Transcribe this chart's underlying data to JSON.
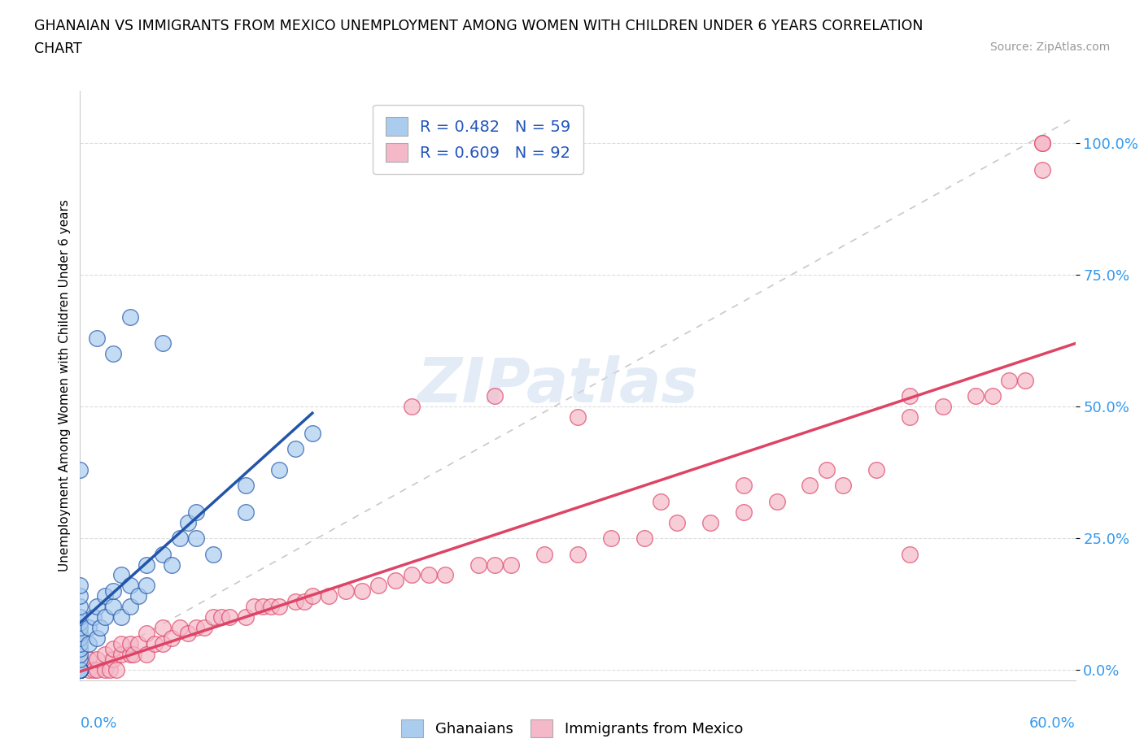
{
  "title_line1": "GHANAIAN VS IMMIGRANTS FROM MEXICO UNEMPLOYMENT AMONG WOMEN WITH CHILDREN UNDER 6 YEARS CORRELATION",
  "title_line2": "CHART",
  "source": "Source: ZipAtlas.com",
  "xlabel_end": "60.0%",
  "xlabel_start": "0.0%",
  "ylabel": "Unemployment Among Women with Children Under 6 years",
  "legend_r1": "R = 0.482   N = 59",
  "legend_r2": "R = 0.609   N = 92",
  "watermark": "ZIPatlas",
  "color_blue": "#aaccee",
  "color_pink": "#f5b8c8",
  "line_blue": "#2255aa",
  "line_pink": "#dd4466",
  "yticks": [
    "0.0%",
    "25.0%",
    "50.0%",
    "75.0%",
    "100.0%"
  ],
  "ytick_vals": [
    0.0,
    0.25,
    0.5,
    0.75,
    1.0
  ],
  "xlim": [
    0.0,
    0.6
  ],
  "ylim": [
    -0.02,
    1.1
  ],
  "ghanaian_x": [
    0.0,
    0.0,
    0.0,
    0.0,
    0.0,
    0.0,
    0.0,
    0.0,
    0.0,
    0.0,
    0.0,
    0.0,
    0.0,
    0.0,
    0.0,
    0.0,
    0.0,
    0.0,
    0.0,
    0.0,
    0.0,
    0.0,
    0.0,
    0.0,
    0.0,
    0.005,
    0.005,
    0.008,
    0.01,
    0.01,
    0.012,
    0.015,
    0.015,
    0.02,
    0.02,
    0.025,
    0.025,
    0.03,
    0.03,
    0.035,
    0.04,
    0.04,
    0.05,
    0.055,
    0.06,
    0.065,
    0.07,
    0.07,
    0.08,
    0.1,
    0.1,
    0.12,
    0.13,
    0.14,
    0.05,
    0.03,
    0.02,
    0.01,
    0.0
  ],
  "ghanaian_y": [
    0.0,
    0.0,
    0.0,
    0.0,
    0.0,
    0.0,
    0.0,
    0.0,
    0.0,
    0.0,
    0.0,
    0.0,
    0.0,
    0.02,
    0.03,
    0.04,
    0.05,
    0.06,
    0.07,
    0.08,
    0.09,
    0.1,
    0.12,
    0.14,
    0.16,
    0.05,
    0.08,
    0.1,
    0.06,
    0.12,
    0.08,
    0.1,
    0.14,
    0.12,
    0.15,
    0.1,
    0.18,
    0.12,
    0.16,
    0.14,
    0.16,
    0.2,
    0.22,
    0.2,
    0.25,
    0.28,
    0.25,
    0.3,
    0.22,
    0.3,
    0.35,
    0.38,
    0.42,
    0.45,
    0.62,
    0.67,
    0.6,
    0.63,
    0.38
  ],
  "mexico_x": [
    0.0,
    0.0,
    0.0,
    0.0,
    0.0,
    0.0,
    0.0,
    0.0,
    0.0,
    0.0,
    0.0,
    0.0,
    0.0,
    0.0,
    0.0,
    0.005,
    0.005,
    0.008,
    0.01,
    0.01,
    0.015,
    0.015,
    0.018,
    0.02,
    0.02,
    0.022,
    0.025,
    0.025,
    0.03,
    0.03,
    0.032,
    0.035,
    0.04,
    0.04,
    0.045,
    0.05,
    0.05,
    0.055,
    0.06,
    0.065,
    0.07,
    0.075,
    0.08,
    0.085,
    0.09,
    0.1,
    0.105,
    0.11,
    0.115,
    0.12,
    0.13,
    0.135,
    0.14,
    0.15,
    0.16,
    0.17,
    0.18,
    0.19,
    0.2,
    0.21,
    0.22,
    0.24,
    0.25,
    0.26,
    0.28,
    0.3,
    0.32,
    0.34,
    0.36,
    0.38,
    0.4,
    0.42,
    0.44,
    0.46,
    0.48,
    0.5,
    0.5,
    0.52,
    0.54,
    0.55,
    0.56,
    0.57,
    0.58,
    0.58,
    0.58,
    0.2,
    0.25,
    0.3,
    0.35,
    0.4,
    0.45,
    0.5
  ],
  "mexico_y": [
    0.0,
    0.0,
    0.0,
    0.0,
    0.0,
    0.0,
    0.0,
    0.0,
    0.0,
    0.0,
    0.0,
    0.0,
    0.0,
    0.0,
    0.0,
    0.0,
    0.02,
    0.0,
    0.0,
    0.02,
    0.0,
    0.03,
    0.0,
    0.02,
    0.04,
    0.0,
    0.03,
    0.05,
    0.03,
    0.05,
    0.03,
    0.05,
    0.03,
    0.07,
    0.05,
    0.05,
    0.08,
    0.06,
    0.08,
    0.07,
    0.08,
    0.08,
    0.1,
    0.1,
    0.1,
    0.1,
    0.12,
    0.12,
    0.12,
    0.12,
    0.13,
    0.13,
    0.14,
    0.14,
    0.15,
    0.15,
    0.16,
    0.17,
    0.18,
    0.18,
    0.18,
    0.2,
    0.2,
    0.2,
    0.22,
    0.22,
    0.25,
    0.25,
    0.28,
    0.28,
    0.3,
    0.32,
    0.35,
    0.35,
    0.38,
    0.48,
    0.52,
    0.5,
    0.52,
    0.52,
    0.55,
    0.55,
    0.95,
    1.0,
    1.0,
    0.5,
    0.52,
    0.48,
    0.32,
    0.35,
    0.38,
    0.22
  ]
}
